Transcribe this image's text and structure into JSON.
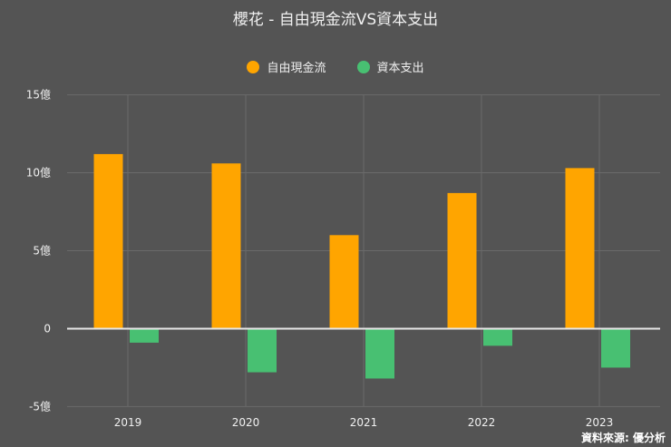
{
  "chart_data": {
    "type": "bar",
    "title": "櫻花 - 自由現金流VS資本支出",
    "categories": [
      "2019",
      "2020",
      "2021",
      "2022",
      "2023"
    ],
    "series": [
      {
        "name": "自由現金流",
        "color": "#FFA500",
        "values": [
          11.2,
          10.6,
          6.0,
          8.7,
          10.3
        ]
      },
      {
        "name": "資本支出",
        "color": "#48C072",
        "values": [
          -0.9,
          -2.8,
          -3.2,
          -1.1,
          -2.5
        ]
      }
    ],
    "yticks": [
      15,
      10,
      5,
      0,
      -5
    ],
    "ytick_labels": [
      "15億",
      "10億",
      "5億",
      "0",
      "-5億"
    ],
    "ylim": [
      -5,
      15
    ],
    "grid": true,
    "legend": "top-center",
    "xlabel": "",
    "ylabel": ""
  },
  "source": "資料來源: 優分析"
}
